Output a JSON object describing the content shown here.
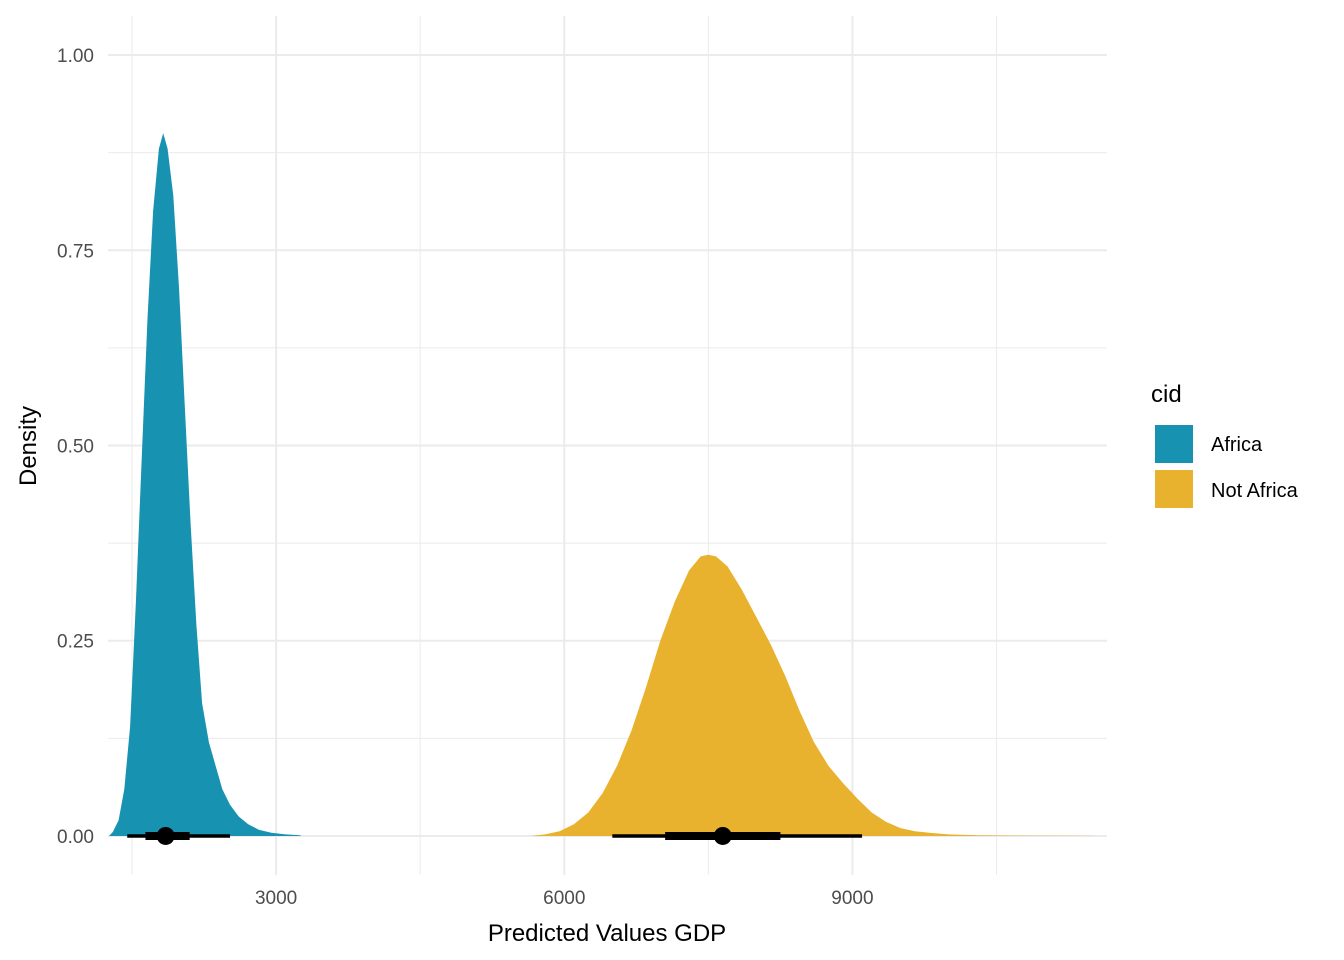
{
  "chart_data": {
    "type": "area",
    "subtype": "density-with-pointinterval",
    "xlabel": "Predicted Values GDP",
    "ylabel": "Density",
    "x_ticks": [
      3000,
      6000,
      9000
    ],
    "x_tick_labels": [
      "3000",
      "6000",
      "9000"
    ],
    "y_ticks": [
      0,
      0.25,
      0.5,
      0.75,
      1.0
    ],
    "y_tick_labels": [
      "0.00",
      "0.25",
      "0.50",
      "0.75",
      "1.00"
    ],
    "xlim": [
      1250,
      11650
    ],
    "ylim": [
      -0.05,
      1.05
    ],
    "grid": true,
    "legend": {
      "title": "cid",
      "position": "right"
    },
    "series": [
      {
        "name": "Africa",
        "color": "#1793b1",
        "density": [
          [
            1260,
            0
          ],
          [
            1300,
            0.005
          ],
          [
            1360,
            0.02
          ],
          [
            1420,
            0.06
          ],
          [
            1480,
            0.14
          ],
          [
            1540,
            0.3
          ],
          [
            1600,
            0.48
          ],
          [
            1660,
            0.66
          ],
          [
            1720,
            0.8
          ],
          [
            1780,
            0.88
          ],
          [
            1825,
            0.9
          ],
          [
            1870,
            0.88
          ],
          [
            1930,
            0.82
          ],
          [
            1990,
            0.7
          ],
          [
            2050,
            0.55
          ],
          [
            2110,
            0.4
          ],
          [
            2170,
            0.27
          ],
          [
            2230,
            0.17
          ],
          [
            2300,
            0.12
          ],
          [
            2370,
            0.09
          ],
          [
            2440,
            0.06
          ],
          [
            2520,
            0.04
          ],
          [
            2610,
            0.025
          ],
          [
            2710,
            0.015
          ],
          [
            2820,
            0.008
          ],
          [
            2950,
            0.004
          ],
          [
            3100,
            0.002
          ],
          [
            3250,
            0.001
          ],
          [
            3260,
            0
          ]
        ],
        "point": 1850,
        "interval_inner": [
          1640,
          2100
        ],
        "interval_outer": [
          1450,
          2520
        ]
      },
      {
        "name": "Not Africa",
        "color": "#e8b22f",
        "density": [
          [
            5650,
            0
          ],
          [
            5800,
            0.002
          ],
          [
            5950,
            0.006
          ],
          [
            6100,
            0.015
          ],
          [
            6250,
            0.03
          ],
          [
            6400,
            0.055
          ],
          [
            6550,
            0.09
          ],
          [
            6700,
            0.135
          ],
          [
            6850,
            0.19
          ],
          [
            7000,
            0.25
          ],
          [
            7150,
            0.3
          ],
          [
            7300,
            0.34
          ],
          [
            7420,
            0.358
          ],
          [
            7500,
            0.36
          ],
          [
            7580,
            0.358
          ],
          [
            7700,
            0.345
          ],
          [
            7850,
            0.315
          ],
          [
            8000,
            0.28
          ],
          [
            8150,
            0.245
          ],
          [
            8300,
            0.205
          ],
          [
            8450,
            0.16
          ],
          [
            8600,
            0.12
          ],
          [
            8750,
            0.09
          ],
          [
            8900,
            0.068
          ],
          [
            9050,
            0.048
          ],
          [
            9200,
            0.03
          ],
          [
            9350,
            0.018
          ],
          [
            9500,
            0.01
          ],
          [
            9650,
            0.006
          ],
          [
            9800,
            0.004
          ],
          [
            10000,
            0.002
          ],
          [
            10300,
            0.001
          ],
          [
            10700,
            0.0005
          ],
          [
            11200,
            0.0002
          ],
          [
            11500,
            0.0001
          ],
          [
            11510,
            0
          ]
        ],
        "point": 7650,
        "interval_inner": [
          7050,
          8250
        ],
        "interval_outer": [
          6500,
          9100
        ]
      }
    ]
  }
}
